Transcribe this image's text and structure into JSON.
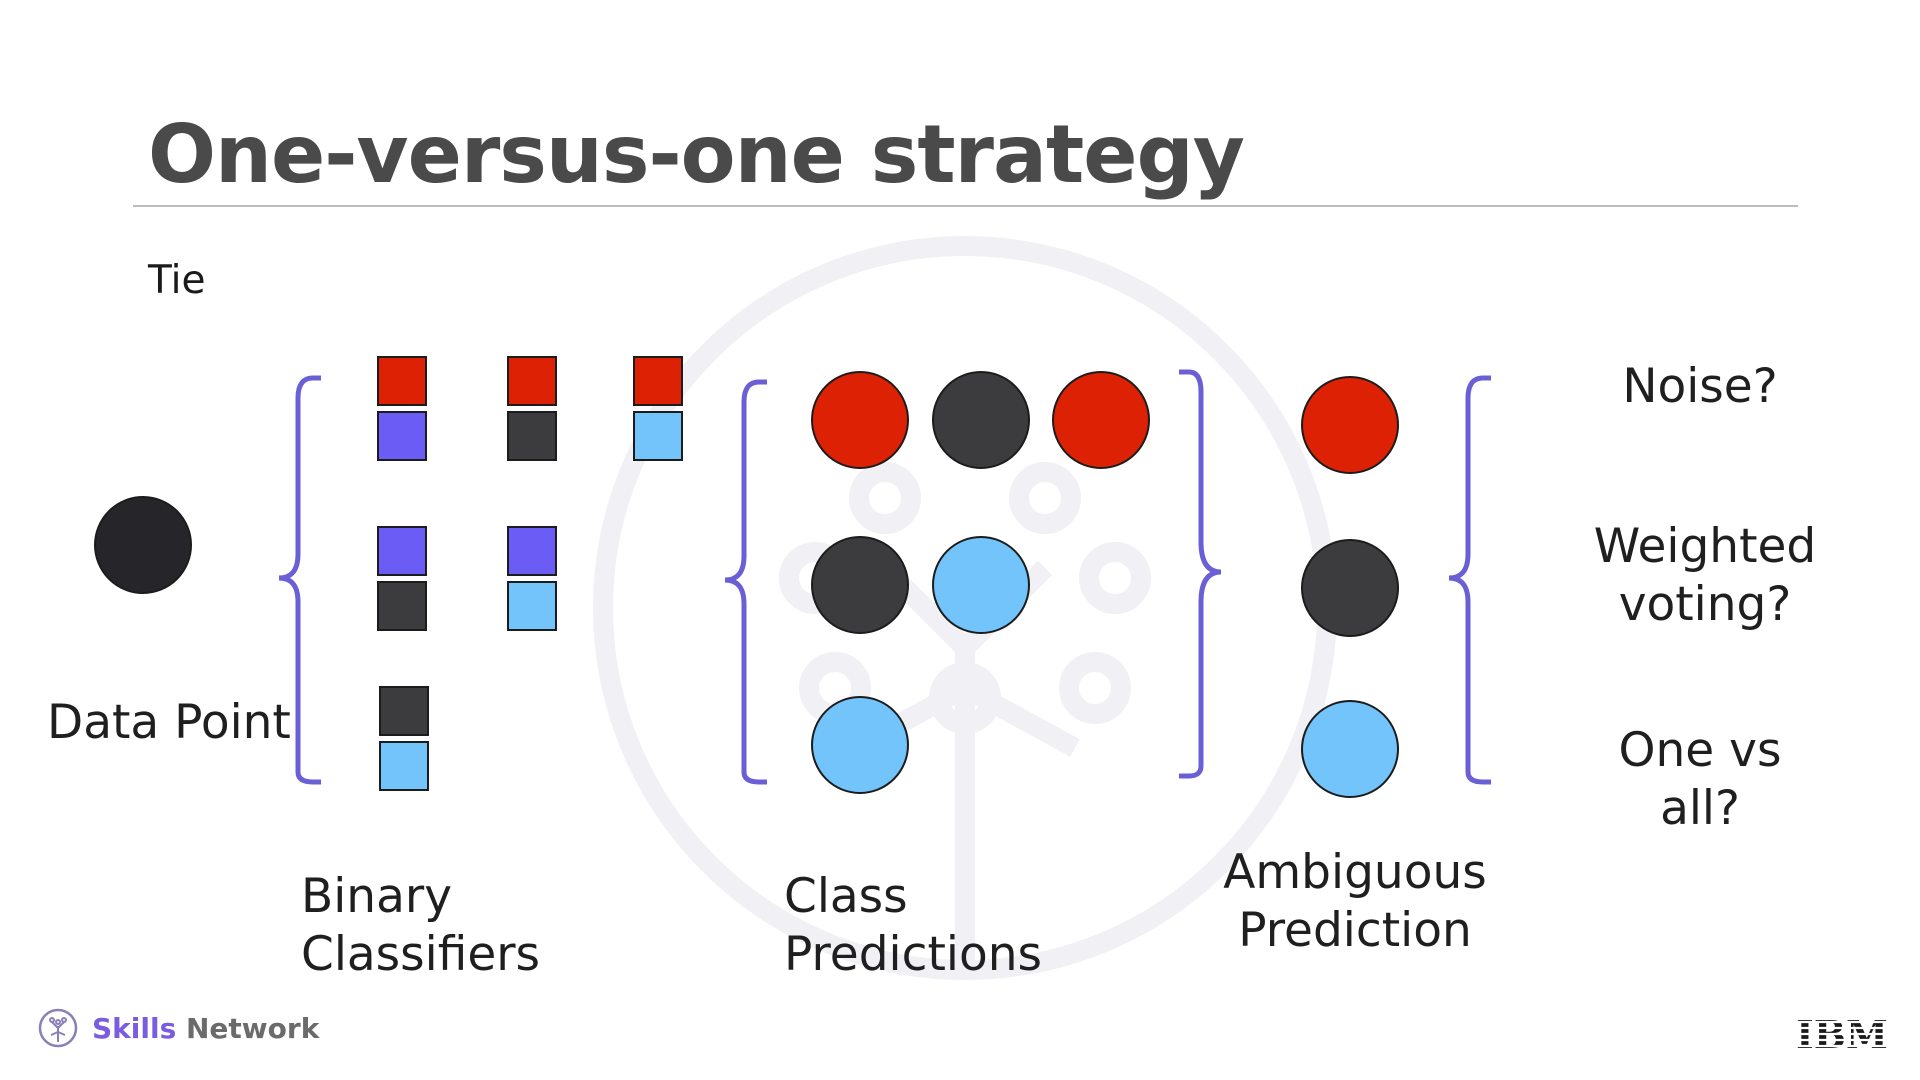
{
  "slide": {
    "title": "One-versus-one strategy",
    "subtitle": "Tie"
  },
  "labels": {
    "data_point": "Data Point",
    "binary_classifiers": [
      "Binary",
      "Classifiers"
    ],
    "class_predictions": [
      "Class",
      "Predictions"
    ],
    "ambiguous_prediction": [
      "Ambiguous",
      "Prediction"
    ],
    "noise": "Noise?",
    "weighted_voting": [
      "Weighted",
      "voting?"
    ],
    "one_vs_all": [
      "One vs",
      "all?"
    ]
  },
  "colors": {
    "red": "#dd2104",
    "dark": "#3c3c3e",
    "data_point": "#26262a",
    "blue_violet": "#6b5cf6",
    "light_blue": "#72c4fb",
    "bracket": "#6b5fd6",
    "title_gray": "#4a4a4a"
  },
  "footer": {
    "brand_skills": "Skills",
    "brand_network": "Network",
    "ibm_logo": "IBM"
  },
  "icons": [
    "skills-network-logo-icon",
    "ibm-logo-icon",
    "watermark-tree-icon"
  ]
}
